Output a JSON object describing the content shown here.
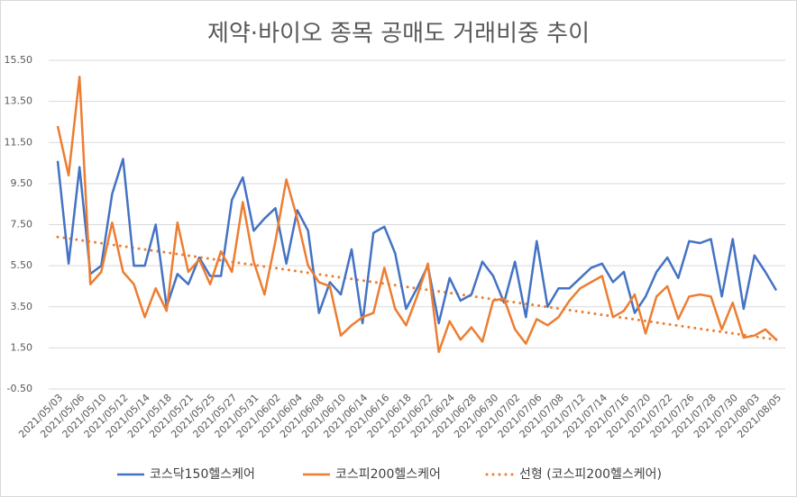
{
  "chart_data": {
    "type": "line",
    "title": "제약·바이오 종목 공매도 거래비중 추이",
    "categories": [
      "2021/05/03",
      null,
      "2021/05/06",
      null,
      "2021/05/10",
      null,
      "2021/05/12",
      null,
      "2021/05/14",
      null,
      "2021/05/18",
      null,
      "2021/05/21",
      null,
      "2021/05/25",
      null,
      "2021/05/27",
      null,
      "2021/05/31",
      null,
      "2021/06/02",
      null,
      "2021/06/04",
      null,
      "2021/06/08",
      null,
      "2021/06/10",
      null,
      "2021/06/14",
      null,
      "2021/06/16",
      null,
      "2021/06/18",
      null,
      "2021/06/22",
      null,
      "2021/06/24",
      null,
      "2021/06/28",
      null,
      "2021/06/30",
      null,
      "2021/07/02",
      null,
      "2021/07/06",
      null,
      "2021/07/08",
      null,
      "2021/07/12",
      null,
      "2021/07/14",
      null,
      "2021/07/16",
      null,
      "2021/07/20",
      null,
      "2021/07/22",
      null,
      "2021/07/26",
      null,
      "2021/07/28",
      null,
      "2021/07/30",
      null,
      "2021/08/03",
      null,
      "2021/08/05"
    ],
    "series": [
      {
        "name": "코스닥150헬스케어",
        "color": "#4472c4",
        "values": [
          10.6,
          5.6,
          10.3,
          5.1,
          5.5,
          9.0,
          10.7,
          5.5,
          5.5,
          7.5,
          3.5,
          5.1,
          4.6,
          5.9,
          5.0,
          5.0,
          8.7,
          9.8,
          7.2,
          7.8,
          8.3,
          5.6,
          8.2,
          7.2,
          3.2,
          4.7,
          4.1,
          6.3,
          2.7,
          7.1,
          7.4,
          6.1,
          3.4,
          4.4,
          5.5,
          2.7,
          4.9,
          3.8,
          4.1,
          5.7,
          5.0,
          3.7,
          5.7,
          3.0,
          6.7,
          3.5,
          4.4,
          4.4,
          4.9,
          5.4,
          5.6,
          4.7,
          5.2,
          3.2,
          4.0,
          5.2,
          5.9,
          4.9,
          6.7,
          6.6,
          6.8,
          4.0,
          6.8,
          3.4,
          6.0,
          5.2,
          4.3
        ]
      },
      {
        "name": "코스피200헬스케어",
        "color": "#ed7d31",
        "values": [
          12.3,
          9.9,
          14.7,
          4.6,
          5.2,
          7.6,
          5.2,
          4.6,
          3.0,
          4.4,
          3.3,
          7.6,
          5.2,
          5.8,
          4.6,
          6.2,
          5.2,
          8.6,
          5.7,
          4.1,
          6.7,
          9.7,
          7.8,
          5.5,
          4.7,
          4.5,
          2.1,
          2.6,
          3.0,
          3.2,
          5.4,
          3.4,
          2.6,
          4.0,
          5.6,
          1.3,
          2.8,
          1.9,
          2.5,
          1.8,
          3.8,
          3.9,
          2.4,
          1.7,
          2.9,
          2.6,
          3.0,
          3.8,
          4.4,
          4.7,
          5.0,
          3.0,
          3.3,
          4.1,
          2.2,
          4.0,
          4.5,
          2.9,
          4.0,
          4.1,
          4.0,
          2.4,
          3.7,
          2.0,
          2.1,
          2.4,
          1.9
        ]
      }
    ],
    "trend": {
      "name": "선형 (코스피200헬스케어)",
      "color": "#ed7d31",
      "start": 6.9,
      "end": 1.9
    },
    "ylim": [
      -0.5,
      15.5
    ],
    "yticks": [
      {
        "value": -0.5,
        "label": "-0.50"
      },
      {
        "value": 1.5,
        "label": "1.50"
      },
      {
        "value": 3.5,
        "label": "3.50"
      },
      {
        "value": 5.5,
        "label": "5.50"
      },
      {
        "value": 7.5,
        "label": "7.50"
      },
      {
        "value": 9.5,
        "label": "9.50"
      },
      {
        "value": 11.5,
        "label": "11.50"
      },
      {
        "value": 13.5,
        "label": "13.50"
      },
      {
        "value": 15.5,
        "label": "15.50"
      }
    ],
    "grid": true,
    "legend": "bottom"
  }
}
